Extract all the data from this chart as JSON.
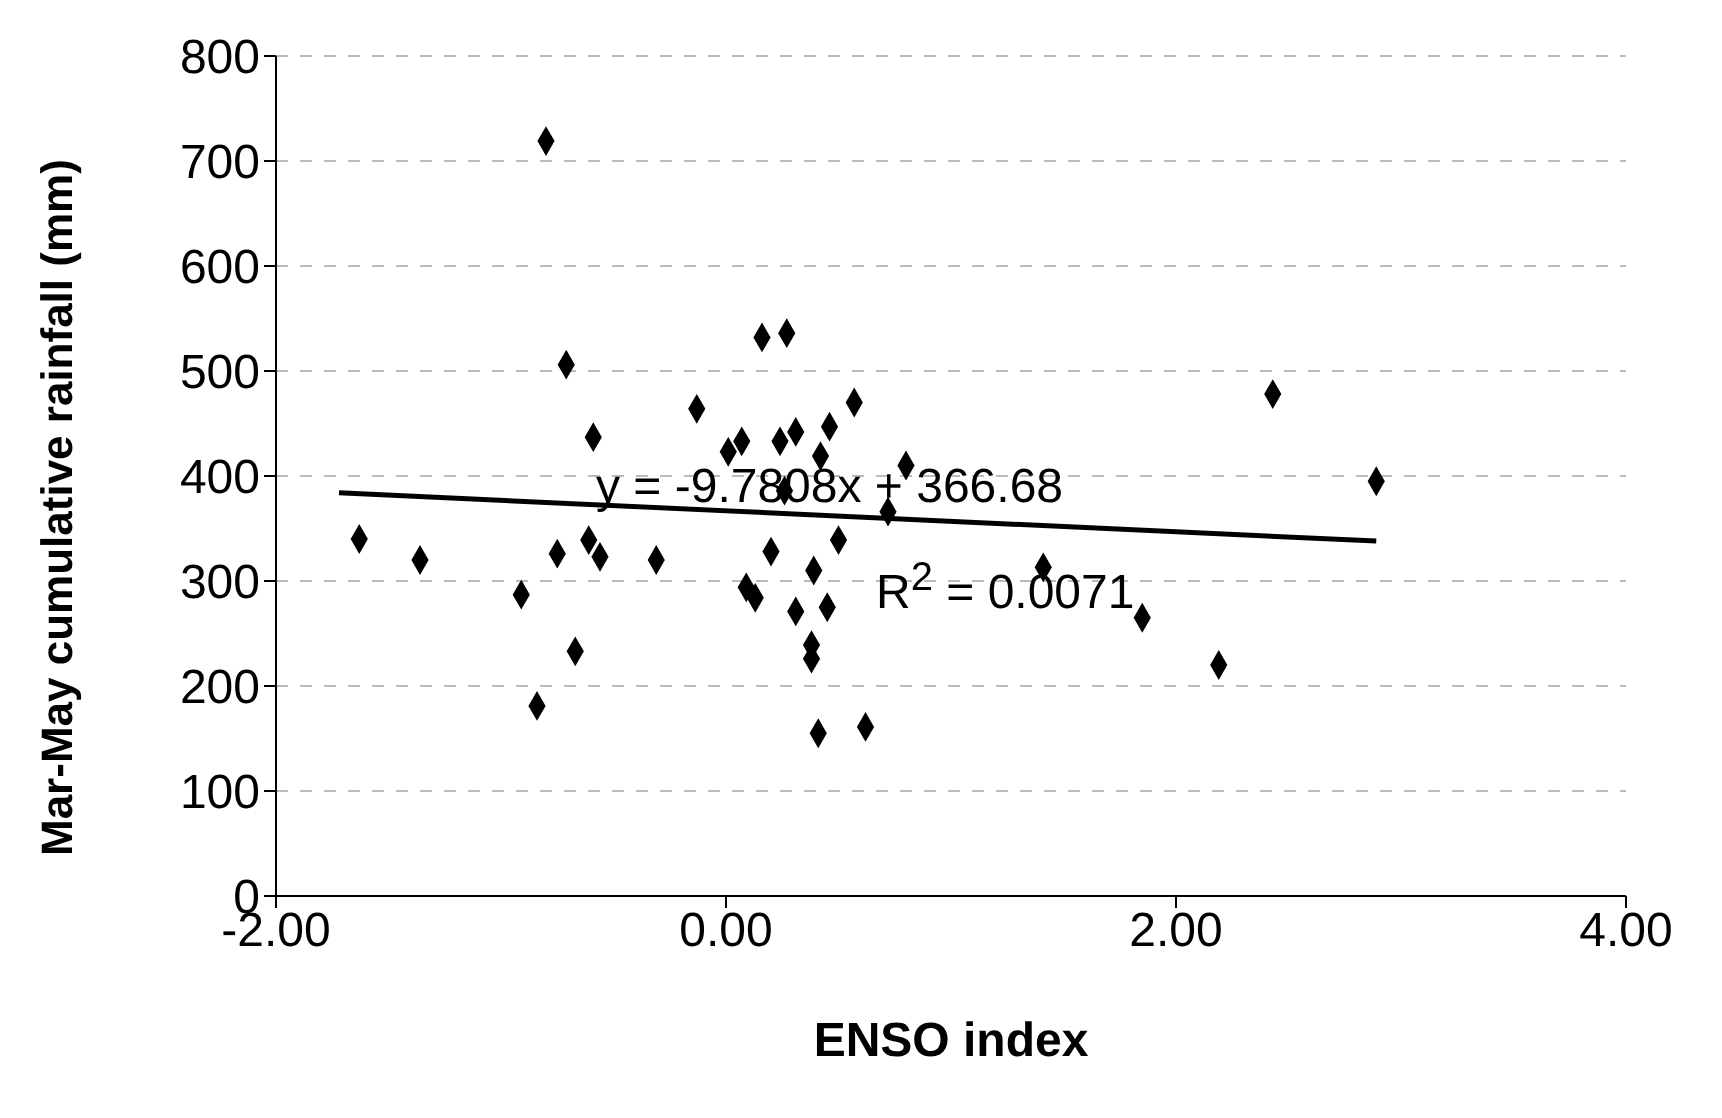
{
  "chart_data": {
    "type": "scatter",
    "xlabel": "ENSO index",
    "ylabel": "Mar-May cumulative rainfall (mm)",
    "annotations": [
      "y = -9.7808x + 366.68",
      "R$^{2}$ = 0.0071"
    ],
    "xlim": [
      -2,
      4
    ],
    "xticks": [
      {
        "value": -2,
        "label": "-2.00"
      },
      {
        "value": 0,
        "label": "0.00"
      },
      {
        "value": 2,
        "label": "2.00"
      },
      {
        "value": 4,
        "label": "4.00"
      }
    ],
    "ylim": [
      0,
      800
    ],
    "yticks": [
      0,
      100,
      200,
      300,
      400,
      500,
      600,
      700,
      800
    ],
    "grid": "y",
    "marker": "diamond",
    "series": [
      {
        "type": "scatter",
        "color": "#000000",
        "x": [
          -1.63,
          -1.36,
          -0.91,
          -0.8,
          -0.84,
          -0.71,
          -0.59,
          -0.61,
          -0.75,
          -0.56,
          -0.67,
          -0.31,
          -0.13,
          0.01,
          0.07,
          0.16,
          0.27,
          0.24,
          0.31,
          0.46,
          0.57,
          0.42,
          0.26,
          0.8,
          0.5,
          0.2,
          0.09,
          0.13,
          0.39,
          0.31,
          0.45,
          0.38,
          0.38,
          0.41,
          0.62,
          1.41,
          1.85,
          2.19,
          2.43,
          2.89,
          0.72
        ],
        "values": [
          340,
          320,
          287,
          719,
          181,
          506,
          437,
          339,
          326,
          323,
          233,
          320,
          464,
          423,
          433,
          532,
          536,
          433,
          442,
          447,
          470,
          419,
          386,
          410,
          339,
          328,
          294,
          284,
          310,
          271,
          275,
          239,
          226,
          155,
          161,
          313,
          265,
          220,
          478,
          395,
          366
        ]
      },
      {
        "type": "line",
        "color": "#000000",
        "marker": "none",
        "x": [
          -1.72,
          2.89
        ],
        "values": [
          384,
          338
        ]
      }
    ]
  }
}
